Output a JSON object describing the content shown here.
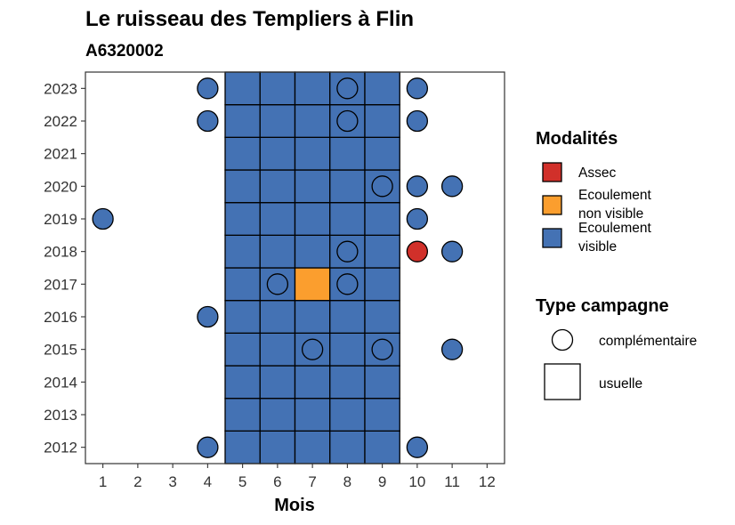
{
  "chart_data": {
    "type": "heatmap",
    "title": "Le ruisseau des Templiers à Flin",
    "subtitle": "A6320002",
    "xlabel": "Mois",
    "ylabel": "",
    "x_ticks": [
      1,
      2,
      3,
      4,
      5,
      6,
      7,
      8,
      9,
      10,
      11,
      12
    ],
    "y_ticks": [
      2012,
      2013,
      2014,
      2015,
      2016,
      2017,
      2018,
      2019,
      2020,
      2021,
      2022,
      2023
    ],
    "xlim": [
      0.5,
      12.5
    ],
    "ylim": [
      2011.5,
      2023.5
    ],
    "grid": false,
    "colors": {
      "Assec": "#D1302A",
      "Ecoulement non visible": "#FB9E2E",
      "Ecoulement visible": "#4472B4"
    },
    "usuelle": {
      "months": [
        5,
        6,
        7,
        8,
        9
      ],
      "years": [
        2012,
        2013,
        2014,
        2015,
        2016,
        2017,
        2018,
        2019,
        2020,
        2021,
        2022,
        2023
      ],
      "default": "Ecoulement visible",
      "exceptions": [
        {
          "month": 7,
          "year": 2017,
          "modalite": "Ecoulement non visible"
        }
      ]
    },
    "complementaire": [
      {
        "month": 4,
        "year": 2023,
        "modalite": "Ecoulement visible"
      },
      {
        "month": 8,
        "year": 2023,
        "modalite": "Ecoulement visible"
      },
      {
        "month": 10,
        "year": 2023,
        "modalite": "Ecoulement visible"
      },
      {
        "month": 4,
        "year": 2022,
        "modalite": "Ecoulement visible"
      },
      {
        "month": 8,
        "year": 2022,
        "modalite": "Ecoulement visible"
      },
      {
        "month": 10,
        "year": 2022,
        "modalite": "Ecoulement visible"
      },
      {
        "month": 9,
        "year": 2020,
        "modalite": "Ecoulement visible"
      },
      {
        "month": 10,
        "year": 2020,
        "modalite": "Ecoulement visible"
      },
      {
        "month": 11,
        "year": 2020,
        "modalite": "Ecoulement visible"
      },
      {
        "month": 1,
        "year": 2019,
        "modalite": "Ecoulement visible"
      },
      {
        "month": 10,
        "year": 2019,
        "modalite": "Ecoulement visible"
      },
      {
        "month": 8,
        "year": 2018,
        "modalite": "Ecoulement visible"
      },
      {
        "month": 10,
        "year": 2018,
        "modalite": "Assec"
      },
      {
        "month": 11,
        "year": 2018,
        "modalite": "Ecoulement visible"
      },
      {
        "month": 6,
        "year": 2017,
        "modalite": "Ecoulement visible"
      },
      {
        "month": 8,
        "year": 2017,
        "modalite": "Ecoulement visible"
      },
      {
        "month": 4,
        "year": 2016,
        "modalite": "Ecoulement visible"
      },
      {
        "month": 7,
        "year": 2015,
        "modalite": "Ecoulement visible"
      },
      {
        "month": 9,
        "year": 2015,
        "modalite": "Ecoulement visible"
      },
      {
        "month": 11,
        "year": 2015,
        "modalite": "Ecoulement visible"
      },
      {
        "month": 4,
        "year": 2012,
        "modalite": "Ecoulement visible"
      },
      {
        "month": 10,
        "year": 2012,
        "modalite": "Ecoulement visible"
      }
    ],
    "legend": {
      "placement": "right",
      "modalites_title": "Modalités",
      "modalites": [
        {
          "key": "Assec",
          "lines": [
            "Assec"
          ]
        },
        {
          "key": "Ecoulement non visible",
          "lines": [
            "Ecoulement",
            "non visible"
          ]
        },
        {
          "key": "Ecoulement visible",
          "lines": [
            "Ecoulement",
            "visible"
          ]
        }
      ],
      "type_title": "Type campagne",
      "types": [
        {
          "shape": "circle",
          "label": "complémentaire"
        },
        {
          "shape": "square",
          "label": "usuelle"
        }
      ]
    }
  }
}
